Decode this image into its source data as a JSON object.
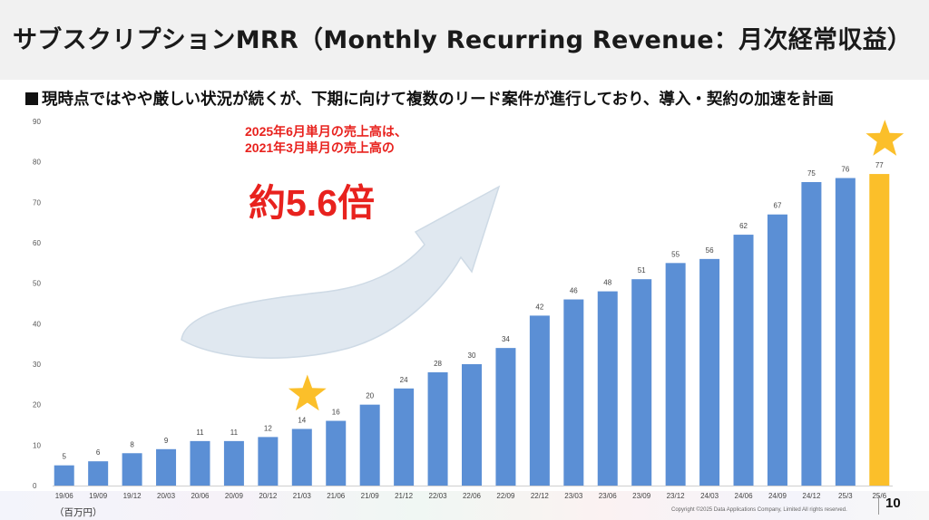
{
  "header": {
    "title": "サブスクリプションMRR（Monthly Recurring Revenue：月次経常収益）",
    "subtitle": "現時点ではやや厳しい状況が続くが、下期に向けて複数のリード案件が進行しており、導入・契約の加速を計画"
  },
  "callout": {
    "line1": "2025年6月単月の売上高は、",
    "line2": "2021年3月単月の売上高の",
    "highlight": "約5.6倍"
  },
  "footer": {
    "unit": "（百万円）",
    "copyright": "Copyright ©2025 Data Applications Company, Limited All rights reserved.",
    "page": "10"
  },
  "colors": {
    "bar": "#5b8fd5",
    "highlight_bar": "#fbbf2a",
    "star": "#fbbf2a",
    "callout": "#e8221e",
    "arrow": "#dde6ef"
  },
  "chart_data": {
    "type": "bar",
    "categories": [
      "19/06",
      "19/09",
      "19/12",
      "20/03",
      "20/06",
      "20/09",
      "20/12",
      "21/03",
      "21/06",
      "21/09",
      "21/12",
      "22/03",
      "22/06",
      "22/09",
      "22/12",
      "23/03",
      "23/06",
      "23/09",
      "23/12",
      "24/03",
      "24/06",
      "24/09",
      "24/12",
      "25/3",
      "25/6"
    ],
    "values": [
      5,
      6,
      8,
      9,
      11,
      11,
      12,
      14,
      16,
      20,
      24,
      28,
      30,
      34,
      42,
      46,
      48,
      51,
      55,
      56,
      62,
      67,
      75,
      76,
      77
    ],
    "data_labels": [
      "5",
      "6",
      "8",
      "9",
      "11",
      "11",
      "12",
      "14",
      "16",
      "20",
      "24",
      "28",
      "30",
      "34",
      "42",
      "46",
      "48",
      "51",
      "55",
      "56",
      "62",
      "67",
      "75",
      "76",
      "77"
    ],
    "y_ticks": [
      "0",
      "10",
      "20",
      "30",
      "40",
      "50",
      "60",
      "70",
      "80",
      "90"
    ],
    "ylim": [
      0,
      90
    ],
    "highlighted_categories": [
      "25/6"
    ],
    "starred_categories": [
      "21/03",
      "25/6"
    ],
    "grid": false
  }
}
